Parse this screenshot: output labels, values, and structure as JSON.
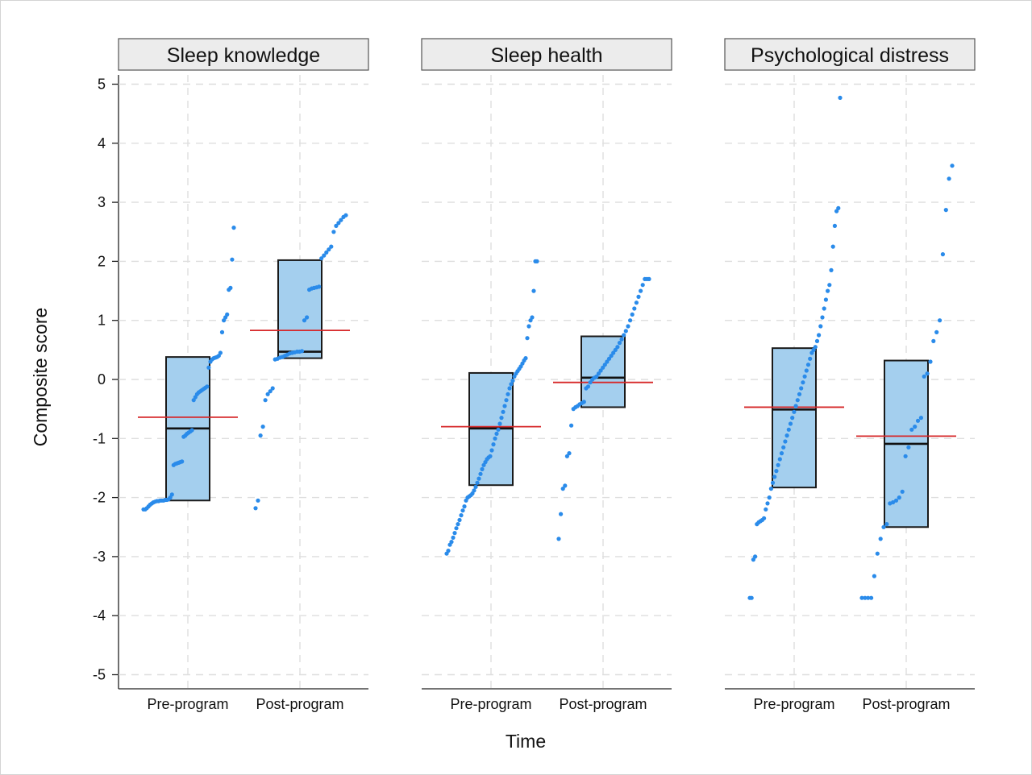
{
  "chart_data": {
    "type": "box-dot",
    "xlabel": "Time",
    "ylabel": "Composite score",
    "ylim": [
      -5.3,
      5.3
    ],
    "y_ticks": [
      5,
      4,
      3,
      2,
      1,
      0,
      -1,
      -2,
      -3,
      -4,
      -5
    ],
    "y_tick_labels": [
      "5",
      "4",
      "3",
      "2",
      "1",
      "0",
      "-1",
      "-2",
      "-3",
      "-4",
      "-5"
    ],
    "categories": [
      "Pre-program",
      "Post-program"
    ],
    "grid": true,
    "colors": {
      "box_fill": "#a4cfee",
      "box_stroke": "#1a1a1a",
      "median": "#111111",
      "mean": "#d62728",
      "points": "#2a8bea",
      "grid": "#dedede",
      "strip_fill": "#ececec"
    },
    "panels": [
      {
        "title": "Sleep knowledge",
        "groups": [
          {
            "category": "Pre-program",
            "q1": -2.05,
            "median": -0.83,
            "q3": 0.38,
            "mean": -0.64,
            "points": [
              -2.2,
              -2.2,
              -2.18,
              -2.15,
              -2.12,
              -2.1,
              -2.08,
              -2.07,
              -2.06,
              -2.06,
              -2.05,
              -2.05,
              -2.05,
              -2.04,
              -2.04,
              -2.03,
              -2.0,
              -1.95,
              -1.45,
              -1.43,
              -1.42,
              -1.41,
              -1.4,
              -1.39,
              -0.97,
              -0.95,
              -0.92,
              -0.9,
              -0.88,
              -0.86,
              -0.35,
              -0.3,
              -0.25,
              -0.22,
              -0.2,
              -0.18,
              -0.16,
              -0.14,
              -0.12,
              0.2,
              0.3,
              0.34,
              0.36,
              0.37,
              0.38,
              0.4,
              0.45,
              0.8,
              1.0,
              1.05,
              1.1,
              1.52,
              1.55,
              2.03,
              2.57
            ]
          },
          {
            "category": "Post-program",
            "q1": 0.36,
            "median": 0.47,
            "q3": 2.02,
            "mean": 0.83,
            "points": [
              -2.18,
              -2.05,
              -0.95,
              -0.8,
              -0.35,
              -0.25,
              -0.2,
              -0.15,
              0.34,
              0.35,
              0.37,
              0.38,
              0.4,
              0.42,
              0.44,
              0.45,
              0.46,
              0.47,
              0.47,
              0.48,
              1.0,
              1.05,
              1.52,
              1.54,
              1.55,
              1.56,
              1.57,
              2.05,
              2.1,
              2.15,
              2.2,
              2.25,
              2.5,
              2.6,
              2.65,
              2.7,
              2.75,
              2.78
            ]
          }
        ]
      },
      {
        "title": "Sleep health",
        "groups": [
          {
            "category": "Pre-program",
            "q1": -1.79,
            "median": -0.83,
            "q3": 0.11,
            "mean": -0.8,
            "points": [
              -2.95,
              -2.9,
              -2.8,
              -2.75,
              -2.68,
              -2.6,
              -2.52,
              -2.45,
              -2.38,
              -2.3,
              -2.22,
              -2.15,
              -2.05,
              -2.0,
              -1.98,
              -1.96,
              -1.93,
              -1.88,
              -1.82,
              -1.75,
              -1.68,
              -1.6,
              -1.52,
              -1.45,
              -1.4,
              -1.35,
              -1.32,
              -1.3,
              -1.2,
              -1.1,
              -1.0,
              -0.92,
              -0.85,
              -0.75,
              -0.65,
              -0.55,
              -0.45,
              -0.35,
              -0.25,
              -0.15,
              -0.08,
              -0.02,
              0.05,
              0.1,
              0.14,
              0.18,
              0.22,
              0.27,
              0.32,
              0.36,
              0.7,
              0.9,
              1.0,
              1.05,
              1.5,
              2.0,
              2.0
            ]
          },
          {
            "category": "Post-program",
            "q1": -0.47,
            "median": 0.03,
            "q3": 0.73,
            "mean": -0.05,
            "points": [
              -2.7,
              -2.28,
              -1.85,
              -1.8,
              -1.3,
              -1.25,
              -0.78,
              -0.5,
              -0.47,
              -0.45,
              -0.42,
              -0.4,
              -0.38,
              -0.15,
              -0.12,
              -0.05,
              0.0,
              0.03,
              0.05,
              0.1,
              0.15,
              0.2,
              0.25,
              0.3,
              0.35,
              0.4,
              0.45,
              0.5,
              0.55,
              0.62,
              0.68,
              0.75,
              0.82,
              0.9,
              1.0,
              1.1,
              1.2,
              1.3,
              1.4,
              1.5,
              1.6,
              1.7,
              1.7,
              1.7
            ]
          }
        ]
      },
      {
        "title": "Psychological distress",
        "groups": [
          {
            "category": "Pre-program",
            "q1": -1.83,
            "median": -0.51,
            "q3": 0.53,
            "mean": -0.47,
            "points": [
              -3.7,
              -3.7,
              -3.05,
              -3.0,
              -2.45,
              -2.42,
              -2.4,
              -2.38,
              -2.35,
              -2.2,
              -2.1,
              -2.0,
              -1.85,
              -1.75,
              -1.65,
              -1.55,
              -1.45,
              -1.35,
              -1.25,
              -1.15,
              -1.05,
              -0.95,
              -0.85,
              -0.75,
              -0.65,
              -0.55,
              -0.45,
              -0.35,
              -0.25,
              -0.15,
              -0.05,
              0.05,
              0.15,
              0.25,
              0.35,
              0.45,
              0.5,
              0.55,
              0.65,
              0.75,
              0.9,
              1.05,
              1.2,
              1.35,
              1.5,
              1.6,
              1.85,
              2.25,
              2.6,
              2.85,
              2.9,
              4.77
            ]
          },
          {
            "category": "Post-program",
            "q1": -2.5,
            "median": -1.09,
            "q3": 0.32,
            "mean": -0.96,
            "points": [
              -3.7,
              -3.7,
              -3.7,
              -3.7,
              -3.33,
              -2.95,
              -2.7,
              -2.5,
              -2.45,
              -2.1,
              -2.08,
              -2.05,
              -2.0,
              -1.9,
              -1.3,
              -1.15,
              -0.85,
              -0.8,
              -0.7,
              -0.65,
              0.05,
              0.1,
              0.3,
              0.65,
              0.8,
              1.0,
              2.12,
              2.87,
              3.4,
              3.62
            ]
          }
        ]
      }
    ]
  }
}
